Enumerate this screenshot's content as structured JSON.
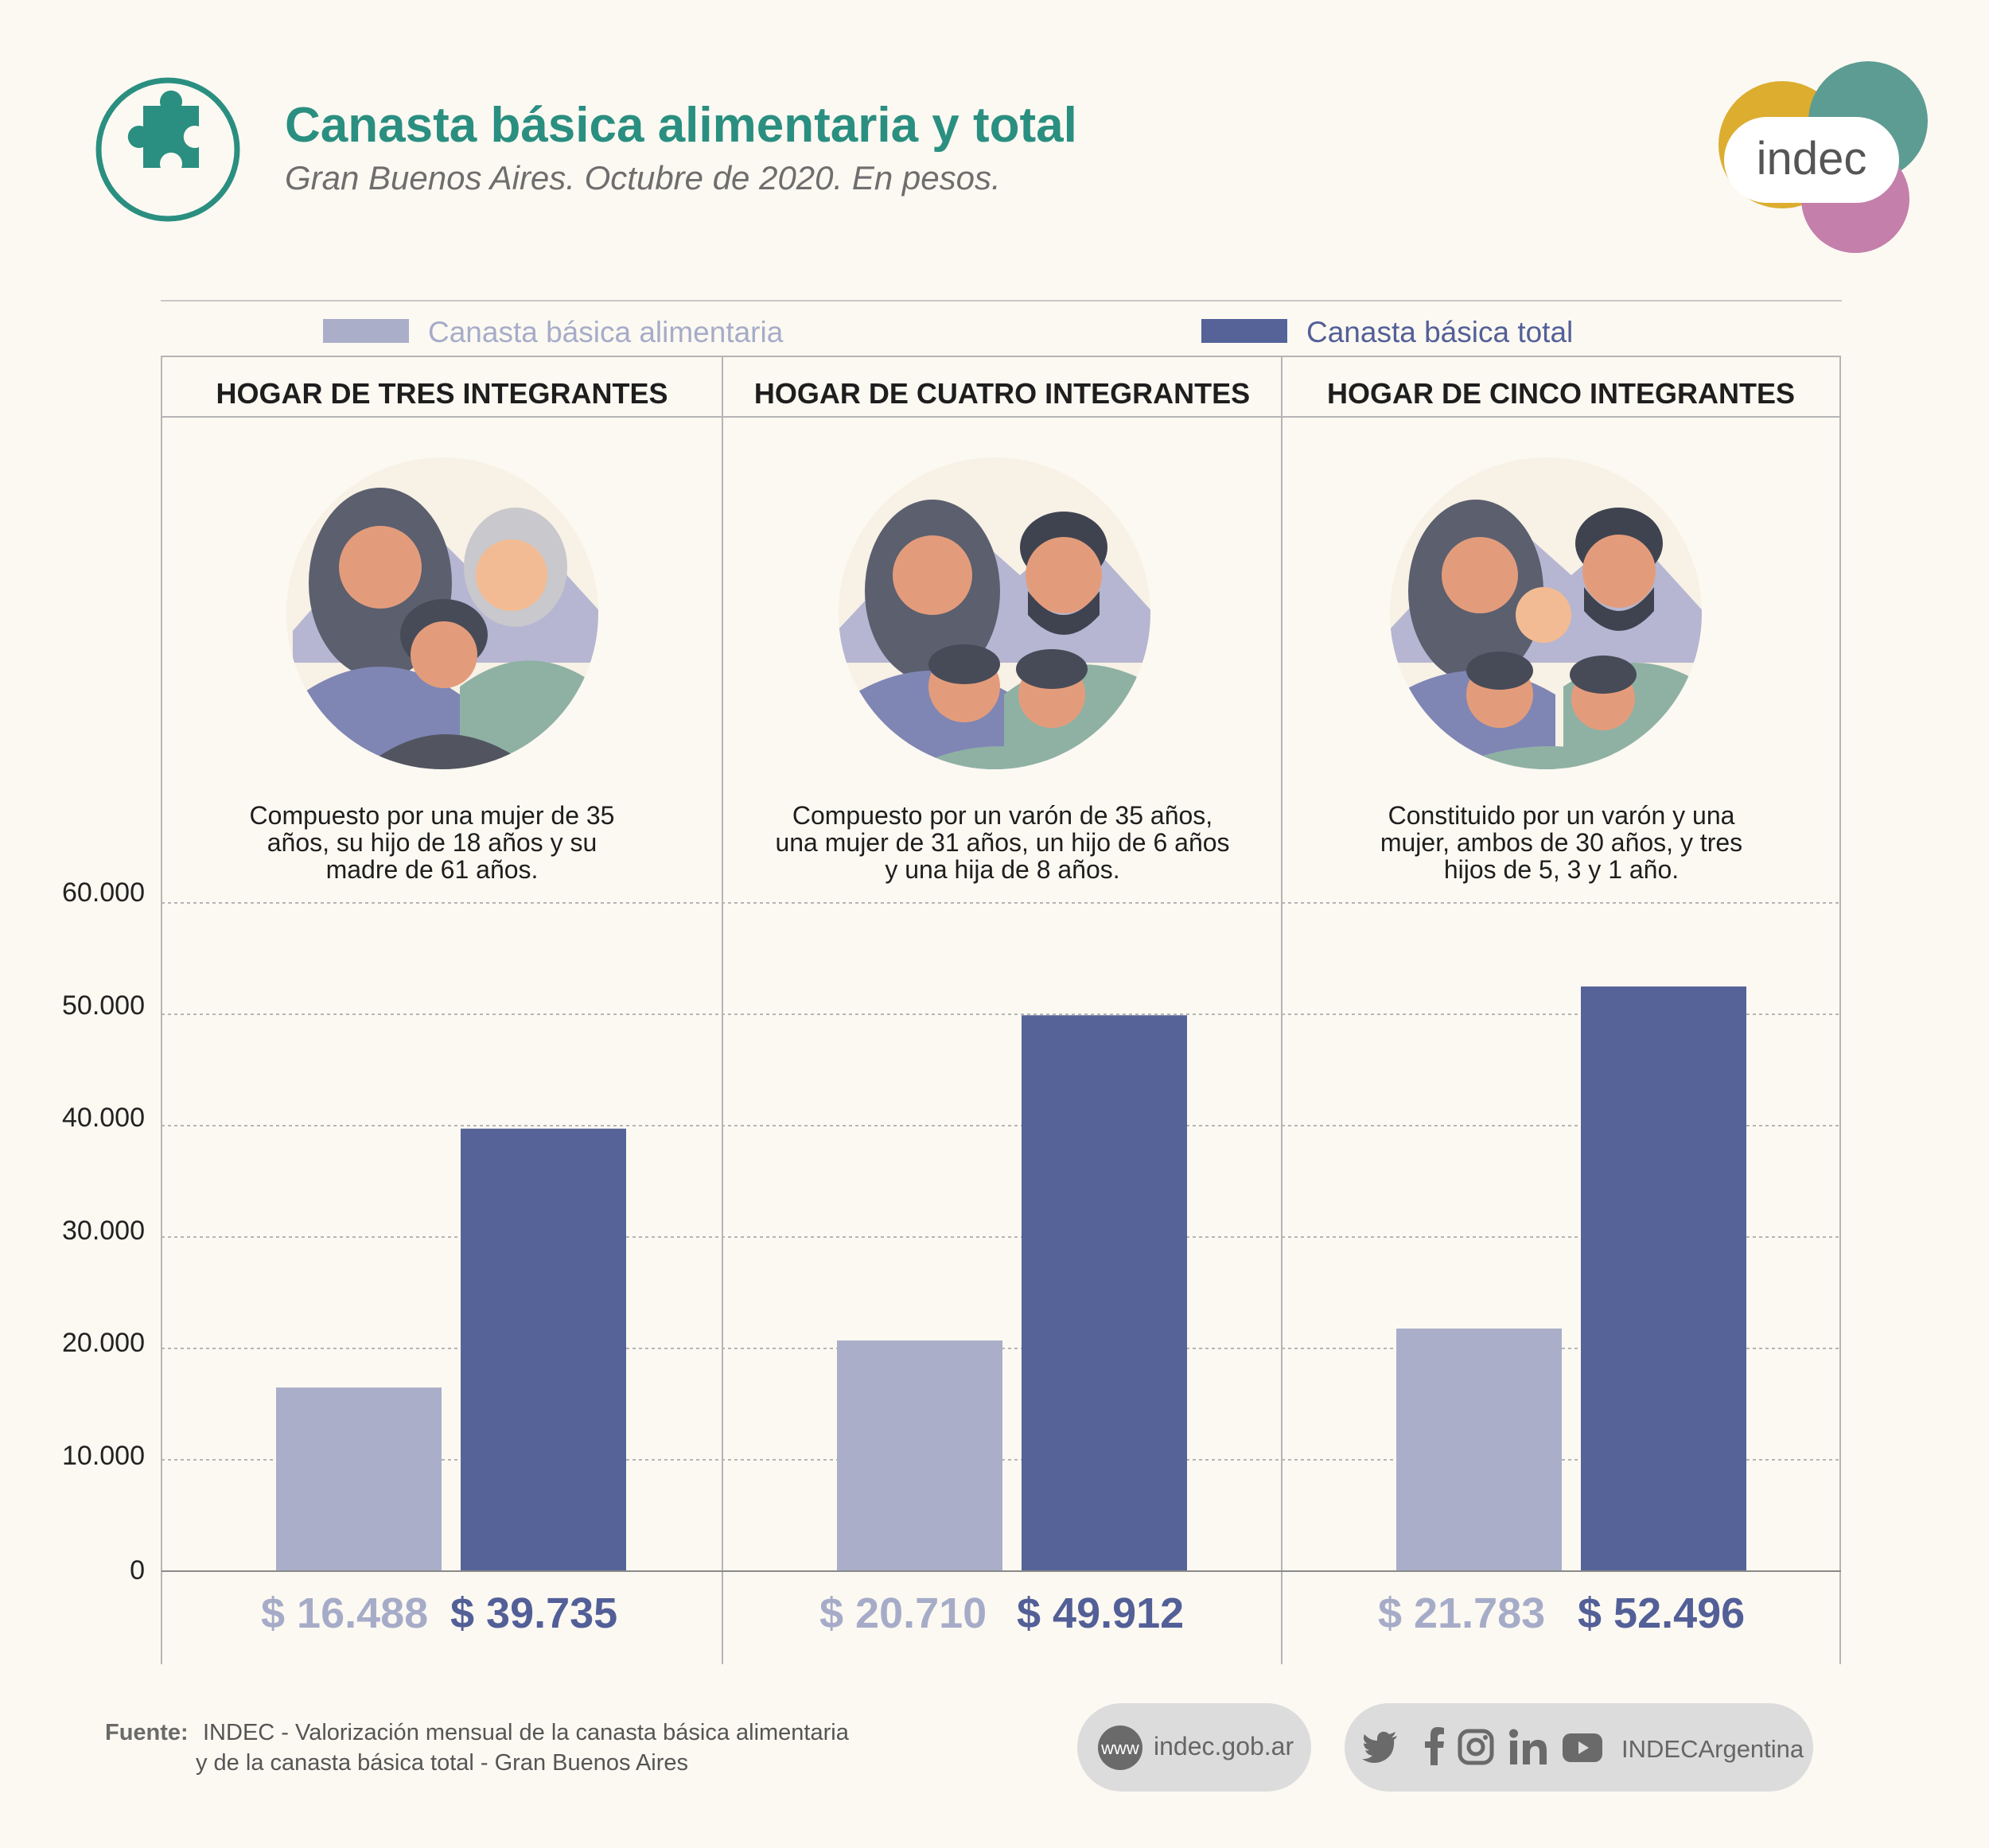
{
  "header": {
    "title": "Canasta básica alimentaria y total",
    "subtitle": "Gran Buenos Aires. Octubre de 2020. En pesos."
  },
  "logo": {
    "text": "indec"
  },
  "colors": {
    "accent": "#2a8f80",
    "food": "#aaaec9",
    "total": "#556398",
    "food_text": "#a6acc8",
    "total_text": "#535f97",
    "background": "#fcf9f2"
  },
  "legend": {
    "food": "Canasta básica alimentaria",
    "total": "Canasta básica total"
  },
  "panels": [
    {
      "title": "HOGAR DE TRES INTEGRANTES",
      "description": "Compuesto por una mujer de 35 años, su hijo de 18 años y su madre de 61 años.",
      "food_label": "$ 16.488",
      "total_label": "$ 39.735"
    },
    {
      "title": "HOGAR DE CUATRO INTEGRANTES",
      "description": "Compuesto por un varón de 35 años, una mujer de 31 años, un hijo de 6 años y una hija de 8 años.",
      "food_label": "$ 20.710",
      "total_label": "$ 49.912"
    },
    {
      "title": "HOGAR DE CINCO INTEGRANTES",
      "description": "Constituido por un varón y una mujer, ambos de 30 años, y tres hijos de 5, 3 y 1 año.",
      "food_label": "$ 21.783",
      "total_label": "$ 52.496"
    }
  ],
  "y_ticks": [
    "0",
    "10.000",
    "20.000",
    "30.000",
    "40.000",
    "50.000",
    "60.000"
  ],
  "chart_data": {
    "type": "bar",
    "title": "Canasta básica alimentaria y total",
    "subtitle": "Gran Buenos Aires. Octubre de 2020. En pesos.",
    "categories": [
      "HOGAR DE TRES INTEGRANTES",
      "HOGAR DE CUATRO INTEGRANTES",
      "HOGAR DE CINCO INTEGRANTES"
    ],
    "series": [
      {
        "name": "Canasta básica alimentaria",
        "values": [
          16488,
          20710,
          21783
        ]
      },
      {
        "name": "Canasta básica total",
        "values": [
          39735,
          49912,
          52496
        ]
      }
    ],
    "xlabel": "",
    "ylabel": "",
    "ylim": [
      0,
      60000
    ],
    "yticks": [
      0,
      10000,
      20000,
      30000,
      40000,
      50000,
      60000
    ],
    "grid": true,
    "legend": "top"
  },
  "footer": {
    "source_label": "Fuente:",
    "source_line1": "INDEC - Valorización mensual de la canasta básica alimentaria",
    "source_line2": "y de la canasta básica total - Gran Buenos Aires",
    "web_icon": "www",
    "web": "indec.gob.ar",
    "social_handle": "INDECArgentina",
    "social_icons": [
      "twitter-icon",
      "facebook-icon",
      "instagram-icon",
      "linkedin-icon",
      "youtube-icon"
    ]
  }
}
